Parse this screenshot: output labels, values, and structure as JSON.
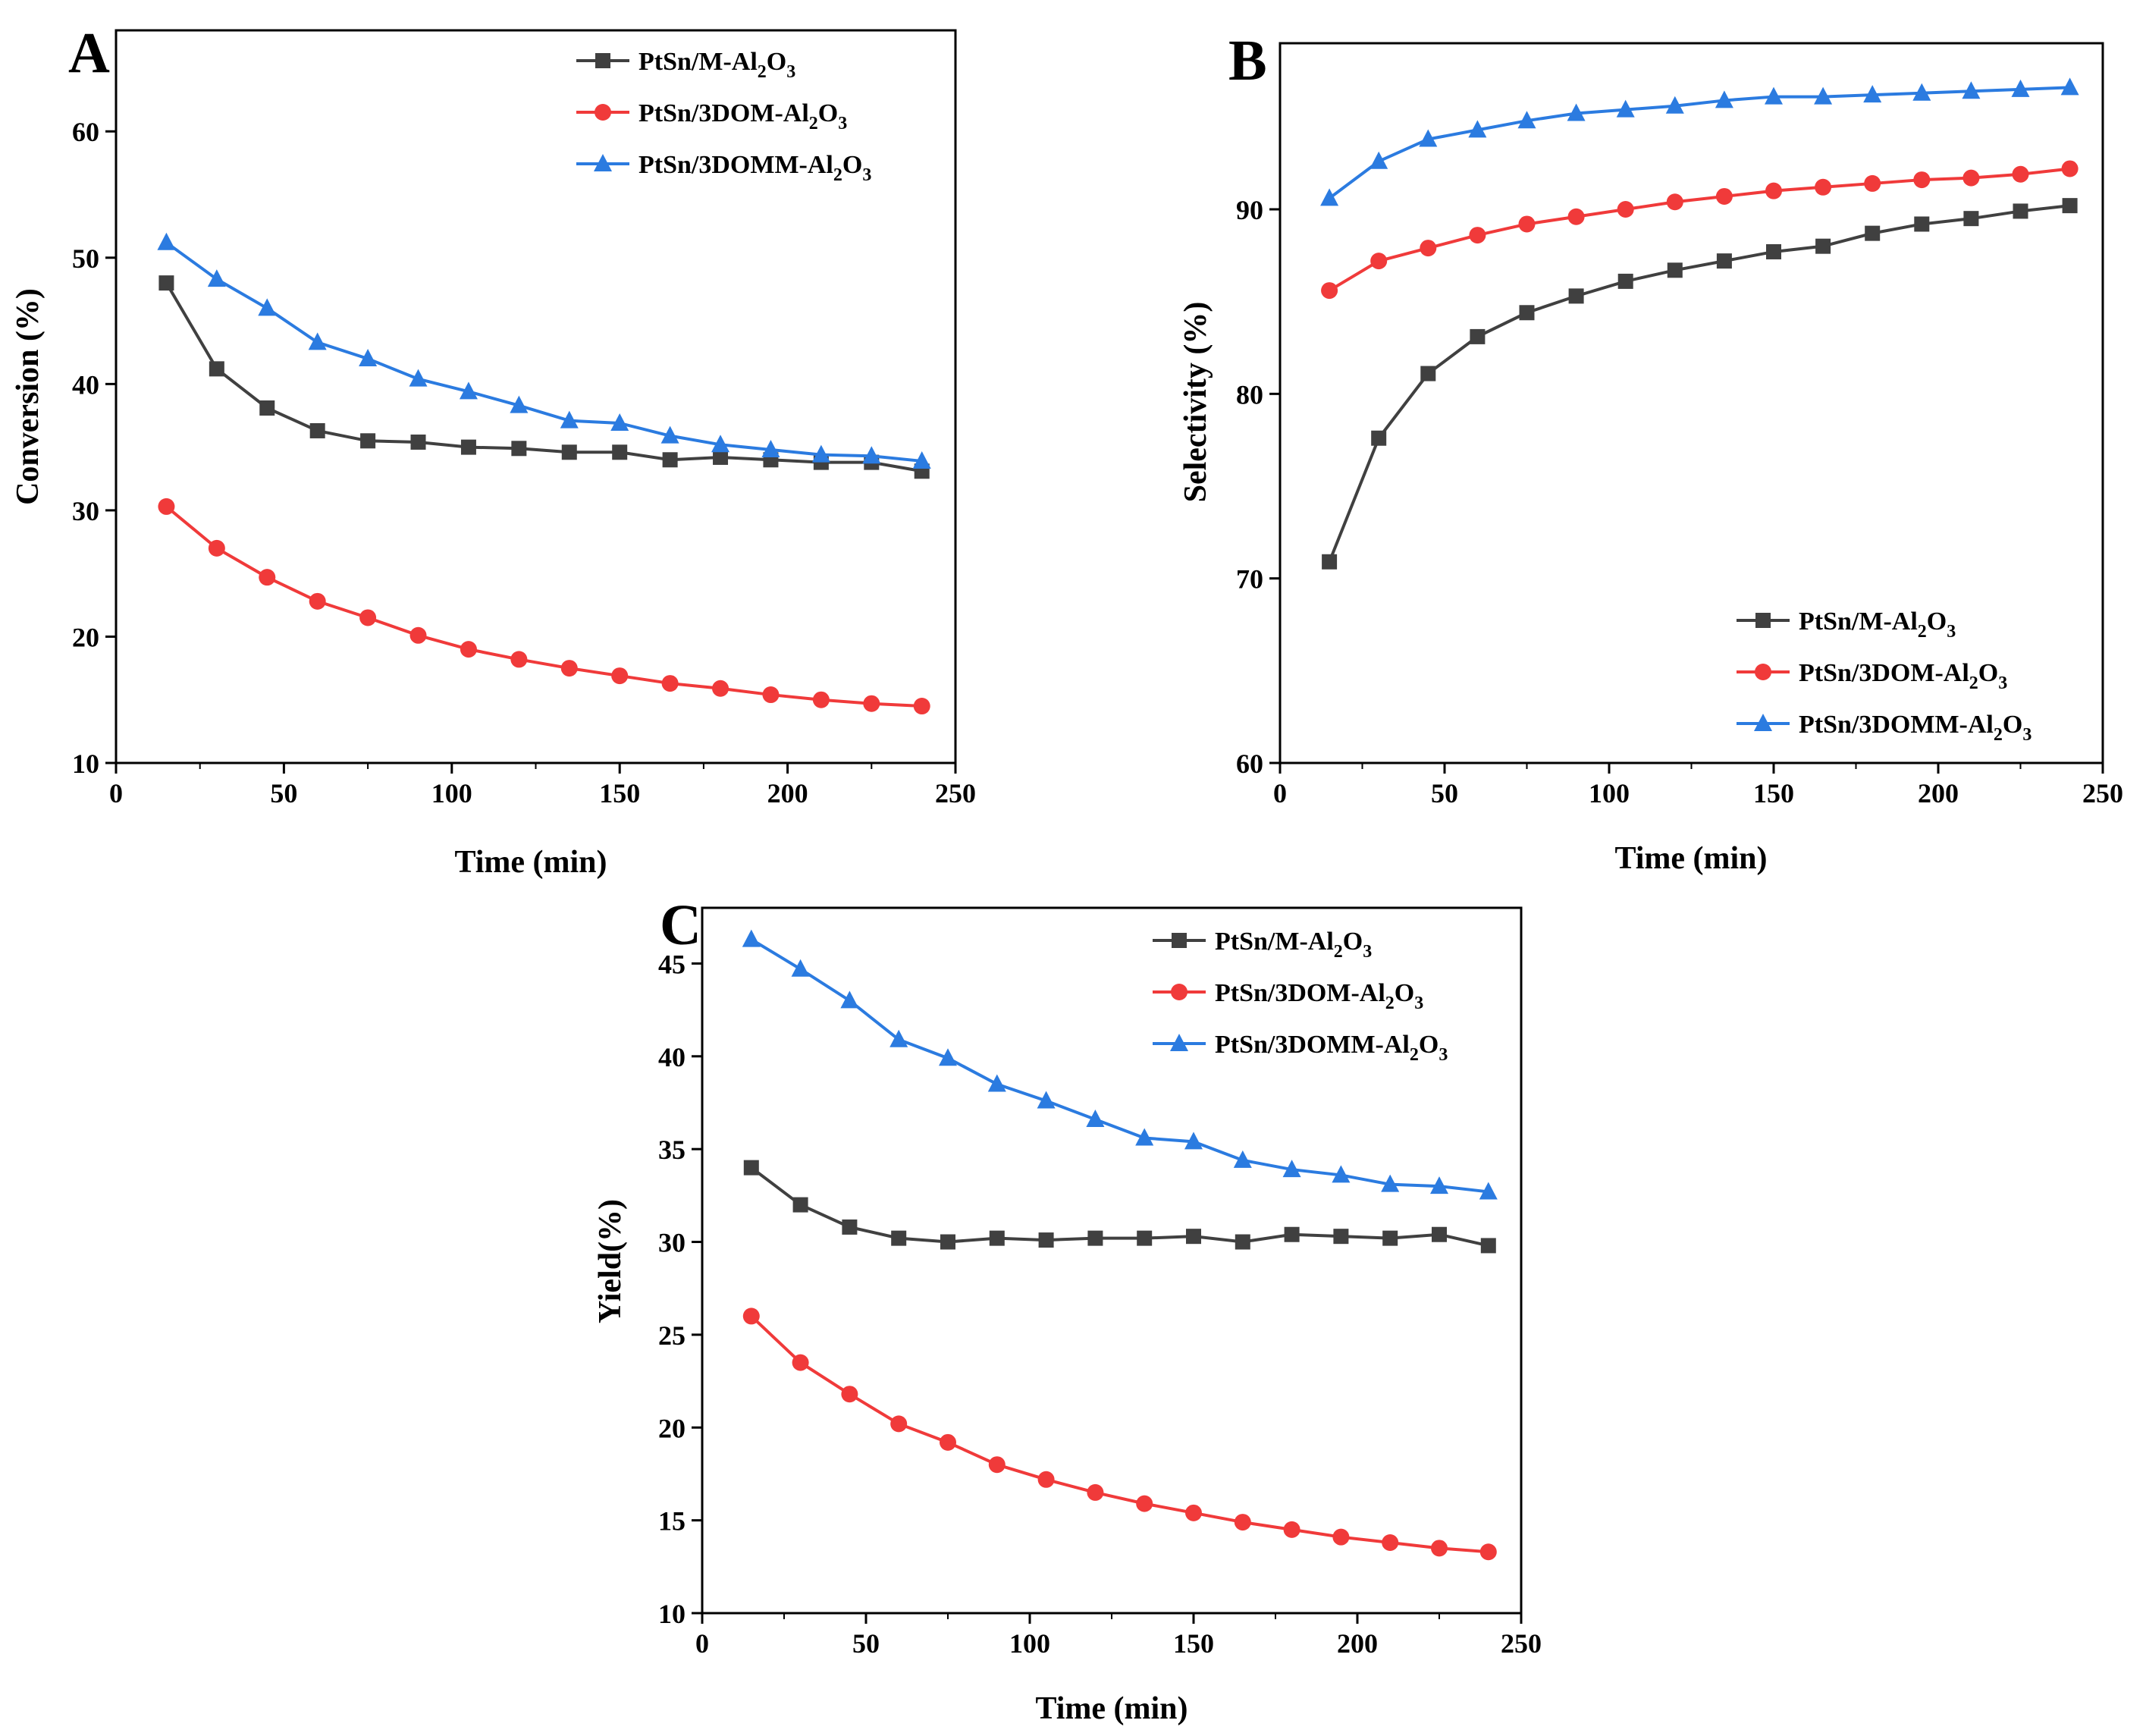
{
  "chart_data": [
    {
      "type": "line",
      "panel": "A",
      "xlabel": "Time (min)",
      "ylabel": "Conversion (%)",
      "xlim": [
        0,
        250
      ],
      "ylim": [
        10,
        68
      ],
      "xticks": [
        0,
        50,
        100,
        150,
        200,
        250
      ],
      "yticks": [
        10,
        20,
        30,
        40,
        50,
        60
      ],
      "legend_position": "top-right",
      "x": [
        15,
        30,
        45,
        60,
        75,
        90,
        105,
        120,
        135,
        150,
        165,
        180,
        195,
        210,
        225,
        240
      ],
      "series": [
        {
          "name": "PtSn/M-Al2O3",
          "label_main": "PtSn/M-Al",
          "sub1": "2",
          "mid": "O",
          "sub2": "3",
          "color": "#404040",
          "marker": "square",
          "values": [
            48.0,
            41.2,
            38.1,
            36.3,
            35.5,
            35.4,
            35.0,
            34.9,
            34.6,
            34.6,
            34.0,
            34.2,
            34.0,
            33.8,
            33.8,
            33.1
          ]
        },
        {
          "name": "PtSn/3DOM-Al2O3",
          "label_main": "PtSn/3DOM-Al",
          "sub1": "2",
          "mid": "O",
          "sub2": "3",
          "color": "#f03a3a",
          "marker": "circle",
          "values": [
            30.3,
            27.0,
            24.7,
            22.8,
            21.5,
            20.1,
            19.0,
            18.2,
            17.5,
            16.9,
            16.3,
            15.9,
            15.4,
            15.0,
            14.7,
            14.5
          ]
        },
        {
          "name": "PtSn/3DOMM-Al2O3",
          "label_main": "PtSn/3DOMM-Al",
          "sub1": "2",
          "mid": "O",
          "sub2": "3",
          "color": "#2b7be0",
          "marker": "triangle",
          "values": [
            51.2,
            48.3,
            46.0,
            43.3,
            42.0,
            40.4,
            39.4,
            38.3,
            37.1,
            36.9,
            35.9,
            35.2,
            34.8,
            34.4,
            34.3,
            33.9
          ]
        }
      ]
    },
    {
      "type": "line",
      "panel": "B",
      "xlabel": "Time (min)",
      "ylabel": "Selectivity (%)",
      "xlim": [
        0,
        250
      ],
      "ylim": [
        60,
        99
      ],
      "xticks": [
        0,
        50,
        100,
        150,
        200,
        250
      ],
      "yticks": [
        60,
        70,
        80,
        90
      ],
      "legend_position": "bottom-right",
      "x": [
        15,
        30,
        45,
        60,
        75,
        90,
        105,
        120,
        135,
        150,
        165,
        180,
        195,
        210,
        225,
        240
      ],
      "series": [
        {
          "name": "PtSn/M-Al2O3",
          "label_main": "PtSn/M-Al",
          "sub1": "2",
          "mid": "O",
          "sub2": "3",
          "color": "#404040",
          "marker": "square",
          "values": [
            70.9,
            77.6,
            81.1,
            83.1,
            84.4,
            85.3,
            86.1,
            86.7,
            87.2,
            87.7,
            88.0,
            88.7,
            89.2,
            89.5,
            89.9,
            90.2
          ]
        },
        {
          "name": "PtSn/3DOM-Al2O3",
          "label_main": "PtSn/3DOM-Al",
          "sub1": "2",
          "mid": "O",
          "sub2": "3",
          "color": "#f03a3a",
          "marker": "circle",
          "values": [
            85.6,
            87.2,
            87.9,
            88.6,
            89.2,
            89.6,
            90.0,
            90.4,
            90.7,
            91.0,
            91.2,
            91.4,
            91.6,
            91.7,
            91.9,
            92.2
          ]
        },
        {
          "name": "PtSn/3DOMM-Al2O3",
          "label_main": "PtSn/3DOMM-Al",
          "sub1": "2",
          "mid": "O",
          "sub2": "3",
          "color": "#2b7be0",
          "marker": "triangle",
          "values": [
            90.6,
            92.6,
            93.8,
            94.3,
            94.8,
            95.2,
            95.4,
            95.6,
            95.9,
            96.1,
            96.1,
            96.2,
            96.3,
            96.4,
            96.5,
            96.6
          ]
        }
      ]
    },
    {
      "type": "line",
      "panel": "C",
      "xlabel": "Time (min)",
      "ylabel": "Yield(%)",
      "xlim": [
        0,
        250
      ],
      "ylim": [
        10,
        48
      ],
      "xticks": [
        0,
        50,
        100,
        150,
        200,
        250
      ],
      "yticks": [
        10,
        15,
        20,
        25,
        30,
        35,
        40,
        45
      ],
      "legend_position": "top-right",
      "x": [
        15,
        30,
        45,
        60,
        75,
        90,
        105,
        120,
        135,
        150,
        165,
        180,
        195,
        210,
        225,
        240
      ],
      "series": [
        {
          "name": "PtSn/M-Al2O3",
          "label_main": "PtSn/M-Al",
          "sub1": "2",
          "mid": "O",
          "sub2": "3",
          "color": "#404040",
          "marker": "square",
          "values": [
            34.0,
            32.0,
            30.8,
            30.2,
            30.0,
            30.2,
            30.1,
            30.2,
            30.2,
            30.3,
            30.0,
            30.4,
            30.3,
            30.2,
            30.4,
            29.8
          ]
        },
        {
          "name": "PtSn/3DOM-Al2O3",
          "label_main": "PtSn/3DOM-Al",
          "sub1": "2",
          "mid": "O",
          "sub2": "3",
          "color": "#f03a3a",
          "marker": "circle",
          "values": [
            26.0,
            23.5,
            21.8,
            20.2,
            19.2,
            18.0,
            17.2,
            16.5,
            15.9,
            15.4,
            14.9,
            14.5,
            14.1,
            13.8,
            13.5,
            13.3
          ]
        },
        {
          "name": "PtSn/3DOMM-Al2O3",
          "label_main": "PtSn/3DOMM-Al",
          "sub1": "2",
          "mid": "O",
          "sub2": "3",
          "color": "#2b7be0",
          "marker": "triangle",
          "values": [
            46.3,
            44.7,
            43.0,
            40.9,
            39.9,
            38.5,
            37.6,
            36.6,
            35.6,
            35.4,
            34.4,
            33.9,
            33.6,
            33.1,
            33.0,
            32.7
          ]
        }
      ]
    }
  ]
}
